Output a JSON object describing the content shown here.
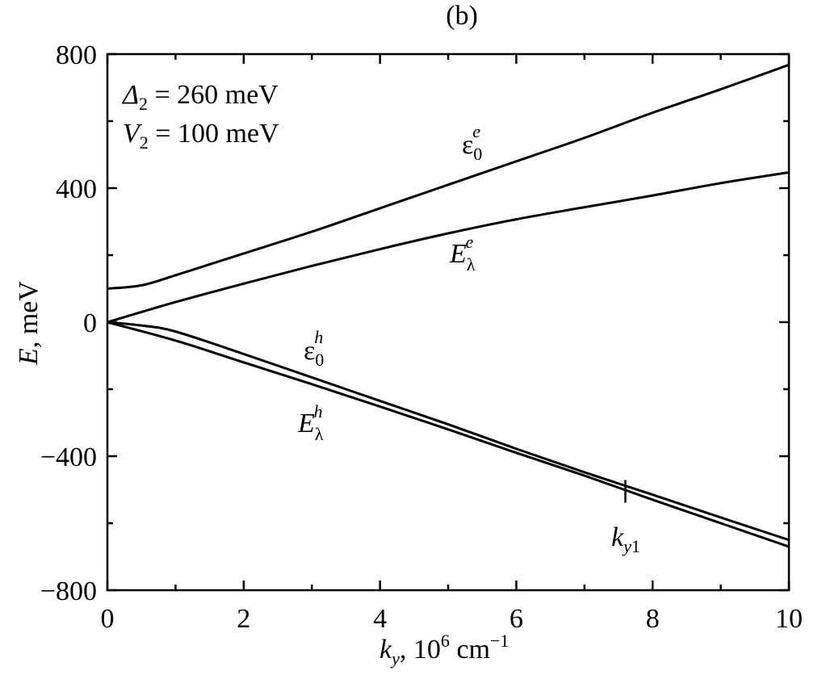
{
  "chart_data": {
    "type": "line",
    "panel_label": "(b)",
    "xlabel": "k_y, 10^6 cm^-1",
    "ylabel": "E, meV",
    "xlim": [
      0,
      10
    ],
    "ylim": [
      -800,
      800
    ],
    "x_ticks": [
      0,
      2,
      4,
      6,
      8,
      10
    ],
    "y_ticks": [
      -800,
      -400,
      0,
      400,
      800
    ],
    "grid": false,
    "annotations": {
      "delta": "Δ2 = 260 meV",
      "v2": "V2 = 100 meV",
      "marker": "ky1",
      "marker_x": 7.6
    },
    "series": [
      {
        "name": "ε0e",
        "x": [
          0,
          0.5,
          1,
          2,
          3,
          4,
          5,
          6,
          7,
          8,
          9,
          10
        ],
        "y": [
          100,
          110,
          140,
          205,
          270,
          340,
          410,
          480,
          550,
          625,
          695,
          768
        ]
      },
      {
        "name": "Eλe",
        "x": [
          0,
          1,
          2,
          3,
          4,
          5,
          6,
          7,
          8,
          9,
          10
        ],
        "y": [
          0,
          60,
          115,
          168,
          218,
          265,
          307,
          343,
          378,
          415,
          447
        ]
      },
      {
        "name": "ε0h",
        "x": [
          0,
          0.5,
          1,
          2,
          3,
          4,
          5,
          6,
          7,
          8,
          9,
          10
        ],
        "y": [
          0,
          -10,
          -28,
          -95,
          -165,
          -235,
          -305,
          -378,
          -448,
          -515,
          -583,
          -650
        ]
      },
      {
        "name": "Eλh",
        "x": [
          0,
          1,
          2,
          3,
          4,
          5,
          6,
          7,
          8,
          9,
          10
        ],
        "y": [
          0,
          -55,
          -120,
          -185,
          -252,
          -320,
          -390,
          -458,
          -530,
          -600,
          -670
        ]
      }
    ]
  }
}
